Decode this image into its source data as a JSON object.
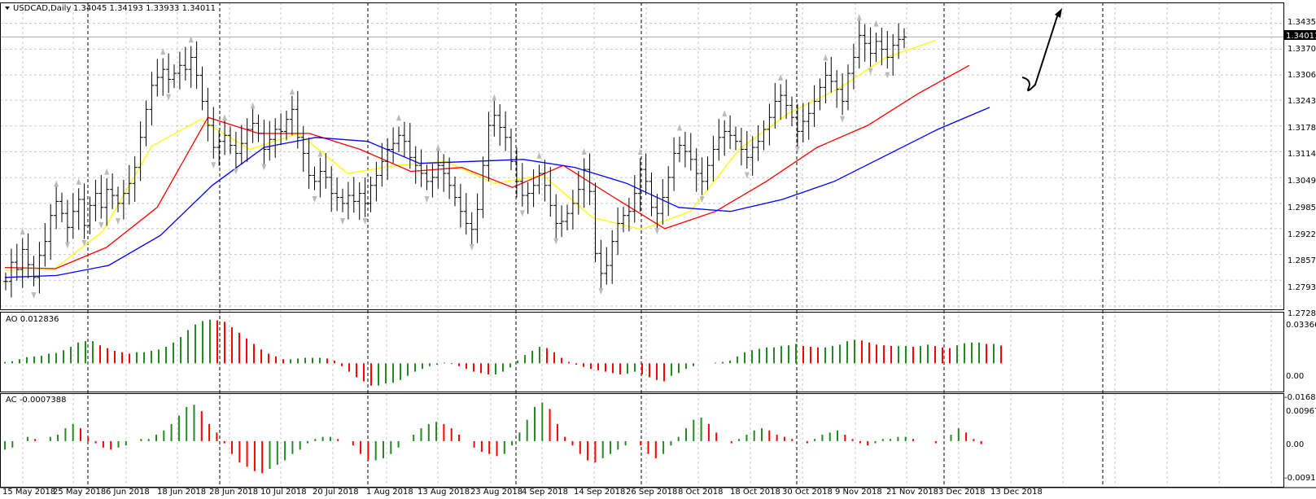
{
  "header": {
    "title": "USDCAD,Daily",
    "ohlc": "1.34045 1.34193 1.33933 1.34011"
  },
  "colors": {
    "bull": "#228b22",
    "bear": "#ff0000",
    "ma_fast": "#ffff00",
    "ma_mid": "#ff0000",
    "ma_slow": "#0000ff",
    "grid": "#c8c8c8",
    "bars": "#000000"
  },
  "main_panel": {
    "price_labels": [
      "1.34350",
      "1.33705",
      "1.33060",
      "1.32430",
      "1.31785",
      "1.31140",
      "1.30495",
      "1.29850",
      "1.29220",
      "1.28575",
      "1.27930",
      "1.27285"
    ],
    "current_price_label": "1.34011"
  },
  "ao_panel": {
    "label": "AO 0.012836",
    "scale_labels": [
      "0.033669",
      "0.00",
      "-0.016818"
    ]
  },
  "ac_panel": {
    "label": "AC -0.0007388",
    "scale_labels": [
      "0.009679",
      "0.00",
      "-0.009145"
    ]
  },
  "x_axis": {
    "labels": [
      "15 May 2018",
      "25 May 2018",
      "6 Jun 2018",
      "18 Jun 2018",
      "28 Jun 2018",
      "10 Jul 2018",
      "20 Jul 2018",
      "1 Aug 2018",
      "13 Aug 2018",
      "23 Aug 2018",
      "4 Sep 2018",
      "14 Sep 2018",
      "26 Sep 2018",
      "8 Oct 2018",
      "18 Oct 2018",
      "30 Oct 2018",
      "9 Nov 2018",
      "21 Nov 2018",
      "3 Dec 2018",
      "13 Dec 2018"
    ]
  },
  "chart_data": [
    {
      "type": "line",
      "title": "USDCAD,Daily",
      "x": [
        "15 May 2018",
        "25 May 2018",
        "6 Jun 2018",
        "18 Jun 2018",
        "28 Jun 2018",
        "10 Jul 2018",
        "20 Jul 2018",
        "1 Aug 2018",
        "13 Aug 2018",
        "23 Aug 2018",
        "4 Sep 2018",
        "14 Sep 2018",
        "26 Sep 2018",
        "8 Oct 2018",
        "18 Oct 2018",
        "30 Oct 2018",
        "9 Nov 2018",
        "21 Nov 2018",
        "3 Dec 2018",
        "13 Dec 2018"
      ],
      "series": [
        {
          "values": [
            1.2818,
            1.282,
            1.2915,
            1.3128,
            1.3195,
            1.312,
            1.316,
            1.306,
            1.308,
            1.309,
            1.3035,
            1.3055,
            1.295,
            1.292,
            1.2965,
            1.312,
            1.321,
            1.327,
            1.335,
            1.3392
          ]
        },
        {
          "values": [
            1.2825,
            1.2822,
            1.2875,
            1.2975,
            1.32,
            1.316,
            1.316,
            1.312,
            1.3065,
            1.3075,
            1.3025,
            1.308,
            1.3,
            1.2922,
            1.2965,
            1.304,
            1.3125,
            1.318,
            1.326,
            1.333
          ]
        },
        {
          "values": [
            1.28,
            1.2805,
            1.283,
            1.2905,
            1.303,
            1.3125,
            1.315,
            1.314,
            1.3085,
            1.309,
            1.3095,
            1.3075,
            1.3035,
            1.2975,
            1.2965,
            1.2995,
            1.304,
            1.3105,
            1.317,
            1.3225
          ]
        }
      ],
      "ylim": [
        1.27285,
        1.3475
      ],
      "ohlc_bars": {
        "step_days": 0.5,
        "close": [
          1.279,
          1.2838,
          1.282,
          1.287,
          1.2832,
          1.28,
          1.2855,
          1.289,
          1.2955,
          1.299,
          1.296,
          1.2925,
          1.2965,
          1.2995,
          1.293,
          1.298,
          1.301,
          1.2975,
          1.302,
          1.3005,
          1.2985,
          1.301,
          1.3035,
          1.3075,
          1.315,
          1.322,
          1.328,
          1.33,
          1.332,
          1.3295,
          1.331,
          1.333,
          1.332,
          1.335,
          1.3305,
          1.324,
          1.318,
          1.3125,
          1.314,
          1.3155,
          1.313,
          1.311,
          1.3135,
          1.317,
          1.3185,
          1.316,
          1.312,
          1.3145,
          1.317,
          1.3165,
          1.3195,
          1.322,
          1.315,
          1.311,
          1.3055,
          1.304,
          1.3065,
          1.305,
          1.301,
          1.3,
          1.2985,
          1.3005,
          1.299,
          1.301,
          1.2985,
          1.303,
          1.3055,
          1.309,
          1.312,
          1.3135,
          1.3155,
          1.314,
          1.31,
          1.308,
          1.306,
          1.304,
          1.305,
          1.308,
          1.306,
          1.303,
          1.3,
          1.2965,
          1.2935,
          1.292,
          1.297,
          1.308,
          1.318,
          1.3205,
          1.3175,
          1.315,
          1.309,
          1.304,
          1.3005,
          1.301,
          1.303,
          1.306,
          1.303,
          1.298,
          1.2935,
          1.294,
          1.296,
          1.2985,
          1.302,
          1.307,
          1.3015,
          1.286,
          1.281,
          1.283,
          1.289,
          1.2935,
          1.2955,
          1.2965,
          1.301,
          1.307,
          1.304,
          1.2975,
          1.296,
          1.3,
          1.305,
          1.311,
          1.313,
          1.3115,
          1.3095,
          1.306,
          1.304,
          1.308,
          1.312,
          1.315,
          1.3165,
          1.3155,
          1.314,
          1.312,
          1.31,
          1.3125,
          1.314,
          1.317,
          1.32,
          1.324,
          1.3255,
          1.323,
          1.32,
          1.3165,
          1.319,
          1.321,
          1.324,
          1.3275,
          1.3305,
          1.329,
          1.327,
          1.324,
          1.331,
          1.335,
          1.3405,
          1.3385,
          1.336,
          1.339,
          1.337,
          1.335,
          1.338,
          1.3395,
          1.3401
        ]
      }
    },
    {
      "type": "bar",
      "title": "AO 0.012836",
      "ylim": [
        -0.016818,
        0.033669
      ],
      "values": [
        0.001,
        0.0015,
        0.003,
        0.0045,
        0.005,
        0.0055,
        0.007,
        0.0075,
        0.0095,
        0.012,
        0.015,
        0.016,
        0.016,
        0.013,
        0.011,
        0.009,
        0.008,
        0.007,
        0.008,
        0.008,
        0.009,
        0.01,
        0.012,
        0.015,
        0.019,
        0.024,
        0.028,
        0.0305,
        0.0315,
        0.031,
        0.03,
        0.026,
        0.022,
        0.018,
        0.014,
        0.01,
        0.007,
        0.005,
        0.003,
        0.003,
        0.0035,
        0.004,
        0.004,
        0.004,
        0.0035,
        0.002,
        -0.002,
        -0.006,
        -0.01,
        -0.013,
        -0.016,
        -0.016,
        -0.0145,
        -0.014,
        -0.012,
        -0.009,
        -0.006,
        -0.004,
        -0.002,
        -0.001,
        0.0005,
        -0.0005,
        -0.002,
        -0.004,
        -0.006,
        -0.007,
        -0.008,
        -0.008,
        -0.006,
        -0.003,
        0.002,
        0.006,
        0.009,
        0.012,
        0.011,
        0.008,
        0.004,
        0.001,
        -0.001,
        -0.0025,
        -0.004,
        -0.005,
        -0.006,
        -0.007,
        -0.008,
        -0.0075,
        -0.006,
        -0.008,
        -0.01,
        -0.012,
        -0.013,
        -0.009,
        -0.007,
        -0.004,
        -0.002,
        0.0,
        0.0,
        0.0005,
        0.001,
        0.002,
        0.005,
        0.008,
        0.0095,
        0.0105,
        0.0115,
        0.0115,
        0.0125,
        0.013,
        0.014,
        0.0125,
        0.012,
        0.0115,
        0.0115,
        0.0125,
        0.0135,
        0.016,
        0.017,
        0.0165,
        0.015,
        0.0135,
        0.013,
        0.0125,
        0.0125,
        0.0125,
        0.012,
        0.0125,
        0.0135,
        0.0125,
        0.0115,
        0.011,
        0.013,
        0.0145,
        0.015,
        0.015,
        0.014,
        0.014,
        0.0128
      ]
    },
    {
      "type": "bar",
      "title": "AC -0.0007388",
      "ylim": [
        -0.009145,
        0.009679
      ],
      "values": [
        -0.002,
        -0.0015,
        0.0,
        0.001,
        0.0005,
        0.0,
        0.001,
        0.0015,
        0.003,
        0.004,
        0.003,
        0.001,
        -0.0005,
        -0.0015,
        -0.002,
        -0.0015,
        -0.001,
        0.0,
        0.0005,
        0.0005,
        0.0015,
        0.0025,
        0.004,
        0.006,
        0.008,
        0.0085,
        0.007,
        0.004,
        0.002,
        -0.0005,
        -0.003,
        -0.005,
        -0.006,
        -0.007,
        -0.0075,
        -0.0065,
        -0.0055,
        -0.0045,
        -0.003,
        -0.002,
        -0.0005,
        0.0005,
        0.001,
        0.001,
        0.0005,
        0.0,
        -0.001,
        -0.003,
        -0.0045,
        -0.0045,
        -0.004,
        -0.003,
        -0.0015,
        0.0,
        0.0015,
        0.003,
        0.004,
        0.0045,
        0.004,
        0.003,
        0.0015,
        0.0,
        -0.0015,
        -0.0025,
        -0.003,
        -0.0035,
        -0.003,
        -0.001,
        0.002,
        0.005,
        0.008,
        0.009,
        0.0075,
        0.004,
        0.001,
        -0.001,
        -0.003,
        -0.0045,
        -0.005,
        -0.004,
        -0.003,
        -0.002,
        -0.001,
        0.0,
        -0.001,
        -0.003,
        -0.004,
        -0.003,
        -0.001,
        0.001,
        0.003,
        0.005,
        0.0055,
        0.004,
        0.002,
        0.0,
        -0.0005,
        0.0005,
        0.0015,
        0.0025,
        0.003,
        0.0025,
        0.0015,
        0.001,
        0.0005,
        0.0,
        -0.0005,
        0.0005,
        0.0015,
        0.002,
        0.0025,
        0.0015,
        0.0005,
        -0.0005,
        -0.001,
        -0.0005,
        0.0005,
        0.0005,
        0.001,
        0.001,
        0.0005,
        0.0,
        0.0,
        -0.0005,
        0.0,
        0.0015,
        0.003,
        0.002,
        0.0005,
        -0.0007
      ]
    }
  ]
}
